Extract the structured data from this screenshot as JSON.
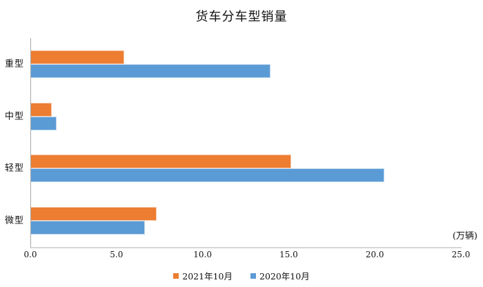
{
  "chart_data": {
    "type": "bar",
    "orientation": "horizontal",
    "title": "货车分车型销量",
    "unit_label": "(万辆)",
    "categories": [
      "重型",
      "中型",
      "轻型",
      "微型"
    ],
    "series": [
      {
        "name": "2021年10月",
        "color": "#ED7D31",
        "border_color": "#F8CBAD",
        "values": [
          5.4,
          1.2,
          15.1,
          7.3
        ]
      },
      {
        "name": "2020年10月",
        "color": "#5B9BD5",
        "border_color": "#BDD7EE",
        "values": [
          13.9,
          1.5,
          20.5,
          6.6
        ]
      }
    ],
    "xlim": [
      0,
      25
    ],
    "x_ticks": [
      "0.0",
      "5.0",
      "10.0",
      "15.0",
      "20.0",
      "25.0"
    ],
    "legend_position": "bottom",
    "grid": false,
    "axis_color": "#A6A6A6"
  }
}
